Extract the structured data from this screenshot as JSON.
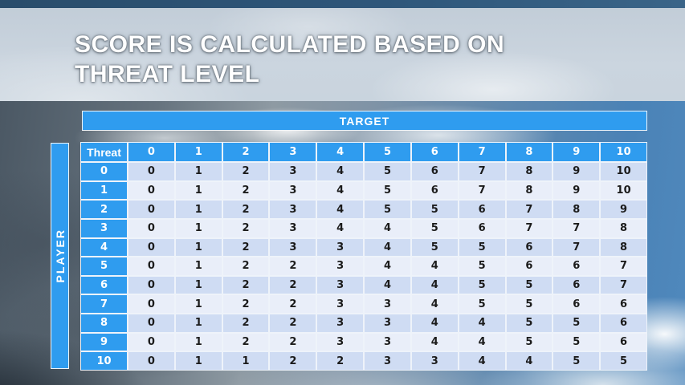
{
  "slide": {
    "title_line1": "SCORE IS CALCULATED BASED ON",
    "title_line2": "THREAT LEVEL"
  },
  "matrix": {
    "target_label": "TARGET",
    "player_label": "PLAYER",
    "corner_label": "Threat",
    "column_headers": [
      "0",
      "1",
      "2",
      "3",
      "4",
      "5",
      "6",
      "7",
      "8",
      "9",
      "10"
    ],
    "rows": [
      {
        "label": "0",
        "values": [
          0,
          1,
          2,
          3,
          4,
          5,
          6,
          7,
          8,
          9,
          10
        ]
      },
      {
        "label": "1",
        "values": [
          0,
          1,
          2,
          3,
          4,
          5,
          6,
          7,
          8,
          9,
          10
        ]
      },
      {
        "label": "2",
        "values": [
          0,
          1,
          2,
          3,
          4,
          5,
          5,
          6,
          7,
          8,
          9
        ]
      },
      {
        "label": "3",
        "values": [
          0,
          1,
          2,
          3,
          4,
          4,
          5,
          6,
          7,
          7,
          8
        ]
      },
      {
        "label": "4",
        "values": [
          0,
          1,
          2,
          3,
          3,
          4,
          5,
          5,
          6,
          7,
          8
        ]
      },
      {
        "label": "5",
        "values": [
          0,
          1,
          2,
          2,
          3,
          4,
          4,
          5,
          6,
          6,
          7
        ]
      },
      {
        "label": "6",
        "values": [
          0,
          1,
          2,
          2,
          3,
          4,
          4,
          5,
          5,
          6,
          7
        ]
      },
      {
        "label": "7",
        "values": [
          0,
          1,
          2,
          2,
          3,
          3,
          4,
          5,
          5,
          6,
          6
        ]
      },
      {
        "label": "8",
        "values": [
          0,
          1,
          2,
          2,
          3,
          3,
          4,
          4,
          5,
          5,
          6
        ]
      },
      {
        "label": "9",
        "values": [
          0,
          1,
          2,
          2,
          3,
          3,
          4,
          4,
          5,
          5,
          6
        ]
      },
      {
        "label": "10",
        "values": [
          0,
          1,
          1,
          2,
          2,
          3,
          3,
          4,
          4,
          5,
          5
        ]
      }
    ]
  },
  "colors": {
    "accent_blue": "#2F9CEF",
    "row_even": "#CFDCF3",
    "row_odd": "#E9EEF9",
    "cell_text": "#1B1B1B",
    "header_text": "#FFFFFF",
    "title_text": "#FFFFFF",
    "title_band": "#C9D4DE",
    "top_strip": "#2E567A"
  }
}
